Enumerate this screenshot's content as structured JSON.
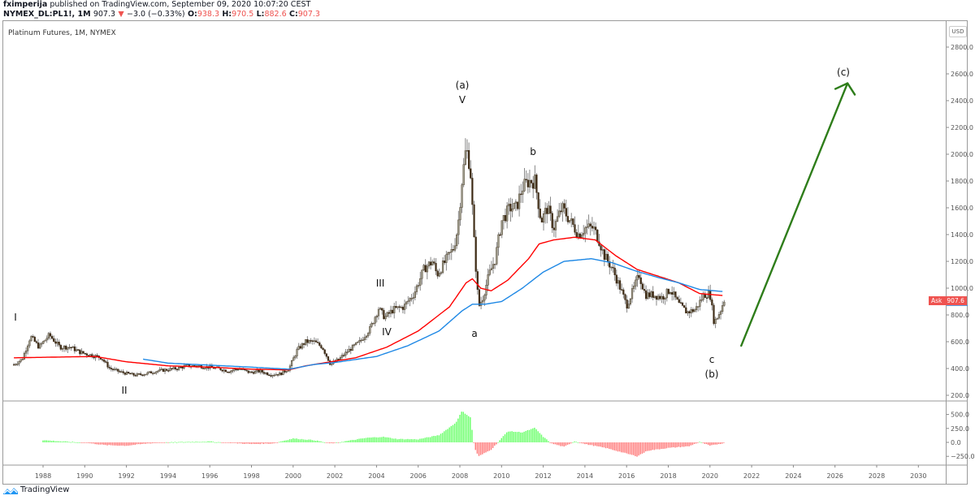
{
  "header": {
    "author": "fximperija",
    "published_text": "published on TradingView.com, September 09, 2020 10:07:20 CEST",
    "symbol": "NYMEX_DL:PL1!, 1M",
    "last": "907.3",
    "change_arrow": "▼",
    "change": "−3.0 (−0.33%)",
    "o_label": "O:",
    "o": "938.3",
    "h_label": "H:",
    "h": "970.5",
    "l_label": "L:",
    "l": "882.6",
    "c_label": "C:",
    "c": "907.3"
  },
  "legend": {
    "title": "Platinum Futures, 1M, NYMEX"
  },
  "price_axis": {
    "currency": "USD",
    "ticks": [
      "2800.0",
      "2600.0",
      "2400.0",
      "2200.0",
      "2000.0",
      "1800.0",
      "1600.0",
      "1400.0",
      "1200.0",
      "1000.0",
      "800.0",
      "600.0",
      "400.0",
      "200.0"
    ],
    "ask_label": "Ask",
    "ask_value": "907.6"
  },
  "osc_axis": {
    "ticks": [
      "500.0",
      "250.0",
      "0.0",
      "−250.0"
    ]
  },
  "time_axis": {
    "ticks": [
      "1988",
      "1990",
      "1992",
      "1994",
      "1996",
      "1998",
      "2000",
      "2002",
      "2004",
      "2006",
      "2008",
      "2010",
      "2012",
      "2014",
      "2016",
      "2018",
      "2020",
      "2022",
      "2024",
      "2026",
      "2028",
      "2030"
    ]
  },
  "annotations": {
    "w1": "I",
    "w2": "II",
    "w3": "III",
    "w4": "IV",
    "w5": "V",
    "wa_paren": "(a)",
    "a": "a",
    "b": "b",
    "c": "c",
    "wb_paren": "(b)",
    "wc_paren": "(c)"
  },
  "colors": {
    "candle": "#3d2a14",
    "wick": "#7a7a7a",
    "ma_red": "#ff0000",
    "ma_blue": "#1e88e5",
    "osc_pos": "#66ff66",
    "osc_neg": "#ff7777",
    "arrow": "#2e7d1a",
    "ask_bg": "#ef5350"
  },
  "brand": {
    "name": "TradingView"
  },
  "chart_data": {
    "type": "candlestick",
    "title": "Platinum Futures, 1M, NYMEX",
    "xlabel": "",
    "ylabel": "USD",
    "ylim": [
      200,
      2800
    ],
    "x_range": [
      1986.5,
      2031
    ],
    "price_path": [
      [
        1986.6,
        430
      ],
      [
        1987.0,
        470
      ],
      [
        1987.4,
        640
      ],
      [
        1987.8,
        560
      ],
      [
        1988.3,
        650
      ],
      [
        1988.8,
        560
      ],
      [
        1989.3,
        560
      ],
      [
        1989.8,
        520
      ],
      [
        1990.3,
        500
      ],
      [
        1990.8,
        480
      ],
      [
        1991.2,
        400
      ],
      [
        1991.8,
        370
      ],
      [
        1992.4,
        350
      ],
      [
        1992.9,
        360
      ],
      [
        1993.4,
        380
      ],
      [
        1993.9,
        390
      ],
      [
        1994.4,
        400
      ],
      [
        1994.9,
        420
      ],
      [
        1995.4,
        420
      ],
      [
        1995.9,
        410
      ],
      [
        1996.4,
        400
      ],
      [
        1996.9,
        380
      ],
      [
        1997.4,
        400
      ],
      [
        1997.9,
        370
      ],
      [
        1998.4,
        380
      ],
      [
        1998.9,
        355
      ],
      [
        1999.4,
        360
      ],
      [
        1999.8,
        400
      ],
      [
        2000.2,
        540
      ],
      [
        2000.6,
        600
      ],
      [
        2001.0,
        600
      ],
      [
        2001.4,
        560
      ],
      [
        2001.8,
        430
      ],
      [
        2002.2,
        470
      ],
      [
        2002.7,
        540
      ],
      [
        2003.2,
        600
      ],
      [
        2003.7,
        700
      ],
      [
        2004.1,
        850
      ],
      [
        2004.4,
        780
      ],
      [
        2004.8,
        840
      ],
      [
        2005.3,
        860
      ],
      [
        2005.8,
        960
      ],
      [
        2006.3,
        1150
      ],
      [
        2006.7,
        1200
      ],
      [
        2006.9,
        1100
      ],
      [
        2007.3,
        1200
      ],
      [
        2007.7,
        1300
      ],
      [
        2007.9,
        1450
      ],
      [
        2008.1,
        1800
      ],
      [
        2008.3,
        2050
      ],
      [
        2008.5,
        1900
      ],
      [
        2008.7,
        1300
      ],
      [
        2008.9,
        860
      ],
      [
        2009.1,
        930
      ],
      [
        2009.4,
        1100
      ],
      [
        2009.7,
        1220
      ],
      [
        2010.0,
        1500
      ],
      [
        2010.4,
        1600
      ],
      [
        2010.7,
        1600
      ],
      [
        2011.0,
        1750
      ],
      [
        2011.3,
        1800
      ],
      [
        2011.6,
        1800
      ],
      [
        2011.9,
        1500
      ],
      [
        2012.2,
        1600
      ],
      [
        2012.5,
        1450
      ],
      [
        2012.9,
        1600
      ],
      [
        2013.3,
        1500
      ],
      [
        2013.7,
        1400
      ],
      [
        2014.0,
        1450
      ],
      [
        2014.4,
        1450
      ],
      [
        2014.7,
        1350
      ],
      [
        2014.9,
        1250
      ],
      [
        2015.3,
        1150
      ],
      [
        2015.7,
        1000
      ],
      [
        2016.0,
        870
      ],
      [
        2016.3,
        980
      ],
      [
        2016.6,
        1100
      ],
      [
        2016.9,
        950
      ],
      [
        2017.3,
        950
      ],
      [
        2017.7,
        930
      ],
      [
        2018.1,
        990
      ],
      [
        2018.5,
        880
      ],
      [
        2018.9,
        820
      ],
      [
        2019.3,
        840
      ],
      [
        2019.7,
        950
      ],
      [
        2020.0,
        960
      ],
      [
        2020.2,
        740
      ],
      [
        2020.5,
        830
      ],
      [
        2020.7,
        920
      ]
    ],
    "moving_averages": [
      {
        "name": "MA (red)",
        "color": "#ff0000",
        "points": [
          [
            1986.6,
            480
          ],
          [
            1990.5,
            490
          ],
          [
            1992,
            450
          ],
          [
            1994,
            420
          ],
          [
            1996,
            410
          ],
          [
            1998,
            395
          ],
          [
            1999.8,
            390
          ],
          [
            2000.6,
            420
          ],
          [
            2001.8,
            450
          ],
          [
            2003,
            480
          ],
          [
            2004.5,
            560
          ],
          [
            2006,
            680
          ],
          [
            2007.5,
            860
          ],
          [
            2008.3,
            1040
          ],
          [
            2008.6,
            1070
          ],
          [
            2009.0,
            1000
          ],
          [
            2009.5,
            980
          ],
          [
            2010.3,
            1060
          ],
          [
            2011.3,
            1220
          ],
          [
            2011.8,
            1330
          ],
          [
            2012.5,
            1360
          ],
          [
            2013.5,
            1380
          ],
          [
            2014.5,
            1360
          ],
          [
            2015.5,
            1240
          ],
          [
            2016.5,
            1140
          ],
          [
            2017.5,
            1090
          ],
          [
            2018.5,
            1040
          ],
          [
            2019.5,
            960
          ],
          [
            2020.6,
            945
          ]
        ]
      },
      {
        "name": "MA (blue)",
        "color": "#1e88e5",
        "points": [
          [
            1992.8,
            470
          ],
          [
            1994,
            440
          ],
          [
            1996,
            425
          ],
          [
            1998,
            410
          ],
          [
            1999.8,
            395
          ],
          [
            2001,
            430
          ],
          [
            2002,
            445
          ],
          [
            2004,
            490
          ],
          [
            2005.5,
            570
          ],
          [
            2007,
            680
          ],
          [
            2008.1,
            830
          ],
          [
            2008.6,
            880
          ],
          [
            2009.2,
            880
          ],
          [
            2010,
            900
          ],
          [
            2011,
            1000
          ],
          [
            2012,
            1120
          ],
          [
            2013,
            1200
          ],
          [
            2014.3,
            1220
          ],
          [
            2015.3,
            1190
          ],
          [
            2016.4,
            1130
          ],
          [
            2017.5,
            1080
          ],
          [
            2018.5,
            1040
          ],
          [
            2019.5,
            990
          ],
          [
            2020.6,
            975
          ]
        ]
      }
    ],
    "oscillator": {
      "ylim": [
        -350,
        650
      ],
      "ticks": [
        500,
        250,
        0,
        -250
      ],
      "profile": [
        [
          1988.0,
          40
        ],
        [
          1989,
          15
        ],
        [
          1990,
          -5
        ],
        [
          1991,
          -50
        ],
        [
          1992,
          -60
        ],
        [
          1993,
          -20
        ],
        [
          1994,
          0
        ],
        [
          1995,
          10
        ],
        [
          1996,
          15
        ],
        [
          1997,
          -10
        ],
        [
          1998,
          -30
        ],
        [
          1999,
          -20
        ],
        [
          2000,
          70
        ],
        [
          2001,
          40
        ],
        [
          2001.8,
          -20
        ],
        [
          2002.5,
          20
        ],
        [
          2003.5,
          80
        ],
        [
          2004.3,
          100
        ],
        [
          2005,
          60
        ],
        [
          2006,
          55
        ],
        [
          2007,
          130
        ],
        [
          2007.8,
          350
        ],
        [
          2008.1,
          560
        ],
        [
          2008.5,
          450
        ],
        [
          2008.7,
          -100
        ],
        [
          2008.9,
          -250
        ],
        [
          2009.5,
          -130
        ],
        [
          2009.8,
          -10
        ],
        [
          2010.3,
          200
        ],
        [
          2011.0,
          180
        ],
        [
          2011.6,
          260
        ],
        [
          2012,
          100
        ],
        [
          2012.4,
          -20
        ],
        [
          2013.0,
          -80
        ],
        [
          2013.5,
          20
        ],
        [
          2014,
          -30
        ],
        [
          2015,
          -100
        ],
        [
          2016,
          -200
        ],
        [
          2016.5,
          -250
        ],
        [
          2017.0,
          -150
        ],
        [
          2018,
          -100
        ],
        [
          2019,
          -70
        ],
        [
          2019.5,
          10
        ],
        [
          2020,
          -60
        ],
        [
          2020.7,
          -10
        ]
      ]
    },
    "projection": {
      "type": "arrow",
      "from": [
        2021.5,
        570
      ],
      "to": [
        2026.6,
        2530
      ],
      "label": "(c)",
      "color": "#2e7d1a"
    },
    "current_price": 907.3,
    "ask": 907.6
  }
}
